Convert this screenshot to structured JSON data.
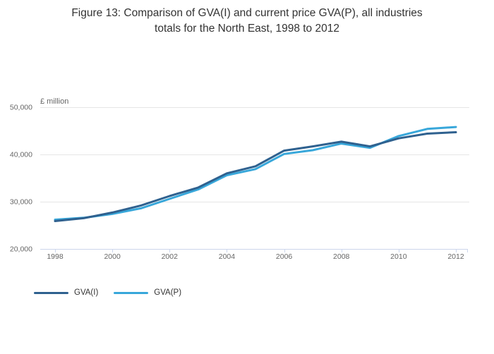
{
  "title": {
    "line1": "Figure 13: Comparison of GVA(I) and current price GVA(P), all industries",
    "line2": "totals for the North East, 1998 to 2012"
  },
  "chart_data": {
    "type": "line",
    "title": "Figure 13: Comparison of GVA(I) and current price GVA(P), all industries totals for the North East, 1998 to 2012",
    "xlabel": "",
    "ylabel": "£ million",
    "x": [
      1998,
      1999,
      2000,
      2001,
      2002,
      2003,
      2004,
      2005,
      2006,
      2007,
      2008,
      2009,
      2010,
      2011,
      2012
    ],
    "series": [
      {
        "name": "GVA(I)",
        "color": "#2f618f",
        "values": [
          25900,
          26500,
          27700,
          29200,
          31200,
          33000,
          36000,
          37500,
          40800,
          41700,
          42700,
          41700,
          43400,
          44400,
          44700
        ]
      },
      {
        "name": "GVA(P)",
        "color": "#38a7da",
        "values": [
          26200,
          26600,
          27400,
          28600,
          30600,
          32600,
          35600,
          36900,
          40100,
          40900,
          42300,
          41400,
          43900,
          45400,
          45800
        ]
      }
    ],
    "ylim": [
      20000,
      50000
    ],
    "y_ticks": [
      20000,
      30000,
      40000,
      50000
    ],
    "y_tick_labels": [
      "20,000",
      "30,000",
      "40,000",
      "50,000"
    ],
    "x_tick_years": [
      1998,
      2000,
      2002,
      2004,
      2006,
      2008,
      2010,
      2012
    ],
    "x_tick_labels": [
      "1998",
      "2000",
      "2002",
      "2004",
      "2006",
      "2008",
      "2010",
      "2012"
    ],
    "grid": true,
    "legend_position": "bottom-left",
    "colors": {
      "grid_line": "#e6e6e6",
      "axis_line": "#ccd6eb",
      "tick_text": "#666666",
      "title_text": "#333333"
    }
  }
}
